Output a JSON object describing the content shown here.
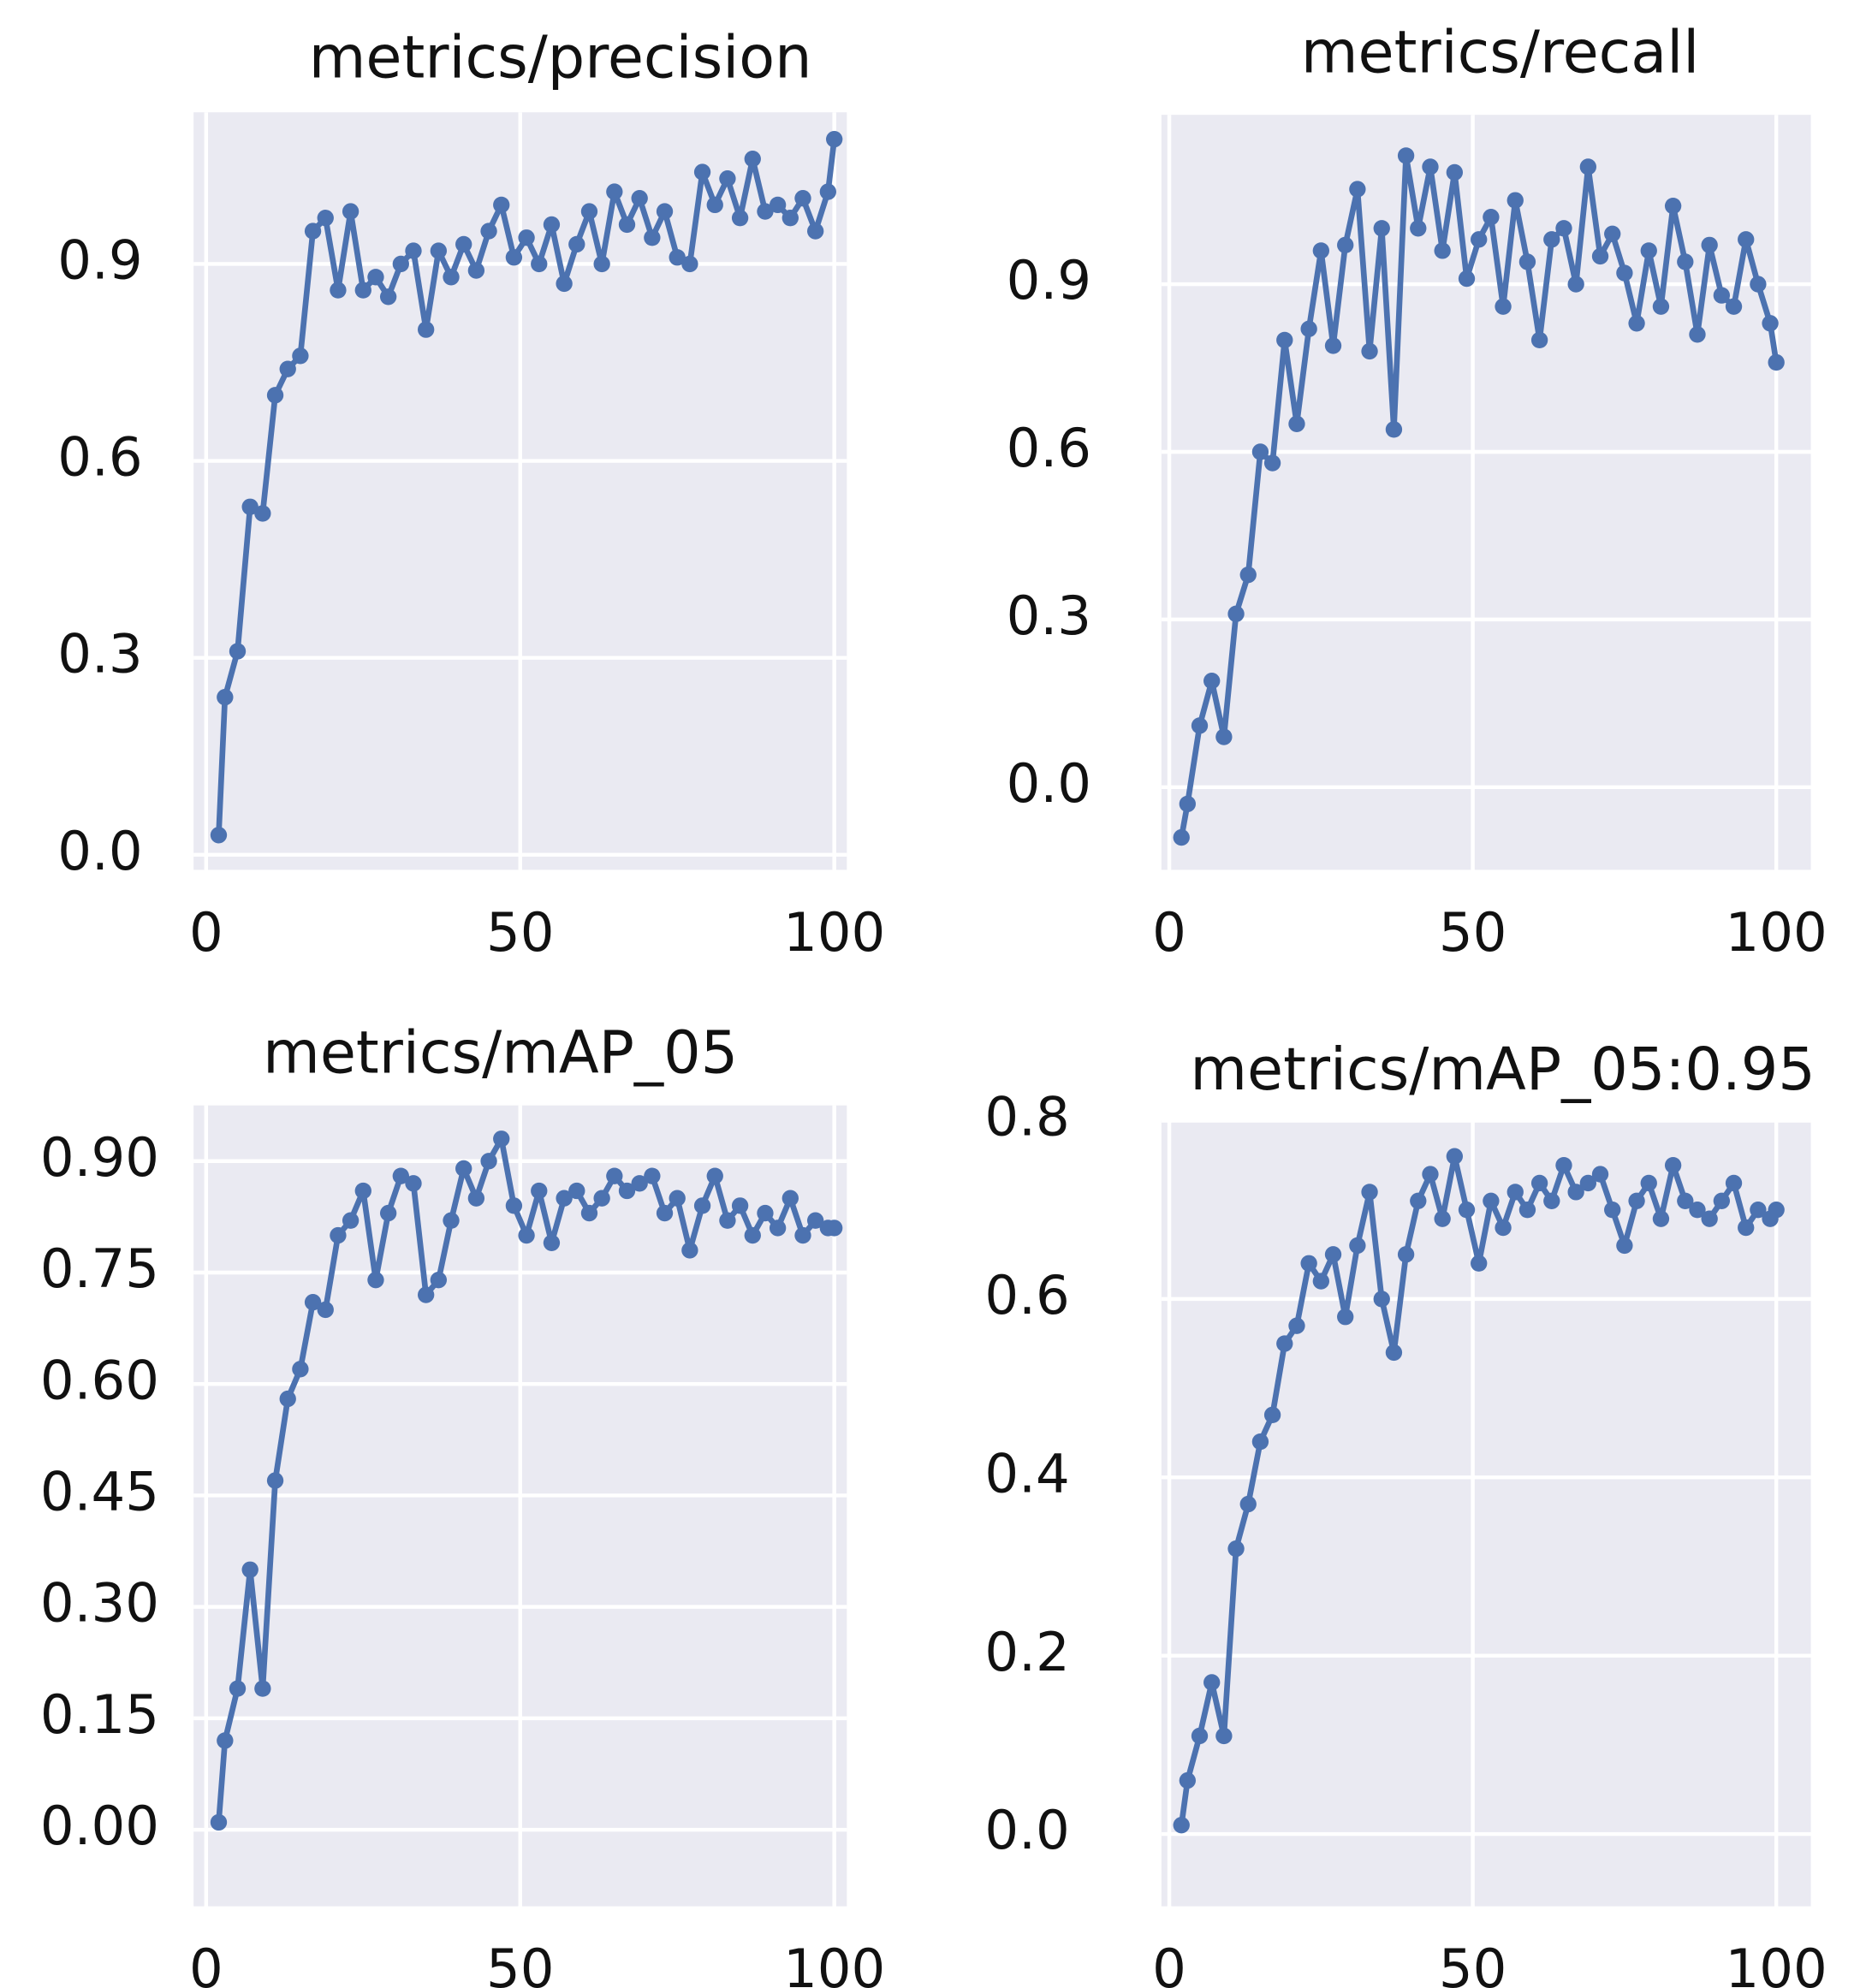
{
  "chart_data": [
    {
      "type": "line",
      "title": "metrics/precision",
      "color": "#4c72b0",
      "grid": true,
      "xlim": [
        -2,
        102
      ],
      "xticks": [
        0,
        50,
        100
      ],
      "ylim": [
        -0.023,
        1.131
      ],
      "yticks": [
        {
          "value": 0,
          "label": "0.0"
        },
        {
          "value": 0.3,
          "label": "0.3"
        },
        {
          "value": 0.6,
          "label": "0.6"
        },
        {
          "value": 0.9,
          "label": "0.9"
        }
      ],
      "x": [
        2,
        3,
        5,
        7,
        9,
        11,
        13,
        15,
        17,
        19,
        21,
        23,
        25,
        27,
        29,
        31,
        33,
        35,
        37,
        39,
        41,
        43,
        45,
        47,
        49,
        51,
        53,
        55,
        57,
        59,
        61,
        63,
        65,
        67,
        69,
        71,
        73,
        75,
        77,
        79,
        81,
        83,
        85,
        87,
        89,
        91,
        93,
        95,
        97,
        99,
        100
      ],
      "values": [
        0.03,
        0.24,
        0.31,
        0.53,
        0.52,
        0.7,
        0.74,
        0.76,
        0.95,
        0.97,
        0.86,
        0.98,
        0.86,
        0.88,
        0.85,
        0.9,
        0.92,
        0.8,
        0.92,
        0.88,
        0.93,
        0.89,
        0.95,
        0.99,
        0.91,
        0.94,
        0.9,
        0.96,
        0.87,
        0.93,
        0.98,
        0.9,
        1.01,
        0.96,
        1.0,
        0.94,
        0.98,
        0.91,
        0.9,
        1.04,
        0.99,
        1.03,
        0.97,
        1.06,
        0.98,
        0.99,
        0.97,
        1.0,
        0.95,
        1.01,
        1.09
      ]
    },
    {
      "type": "line",
      "title": "metrics/recall",
      "color": "#4c72b0",
      "grid": true,
      "xlim": [
        -1.3,
        105.7
      ],
      "xticks": [
        0,
        50,
        100
      ],
      "ylim": [
        -0.148,
        1.203
      ],
      "yticks": [
        {
          "value": 0,
          "label": "0.0"
        },
        {
          "value": 0.3,
          "label": "0.3"
        },
        {
          "value": 0.6,
          "label": "0.6"
        },
        {
          "value": 0.9,
          "label": "0.9"
        }
      ],
      "x": [
        2,
        3,
        5,
        7,
        9,
        11,
        13,
        15,
        17,
        19,
        21,
        23,
        25,
        27,
        29,
        31,
        33,
        35,
        37,
        39,
        41,
        43,
        45,
        47,
        49,
        51,
        53,
        55,
        57,
        59,
        61,
        63,
        65,
        67,
        69,
        71,
        73,
        75,
        77,
        79,
        81,
        83,
        85,
        87,
        89,
        91,
        93,
        95,
        97,
        99,
        100
      ],
      "values": [
        -0.09,
        -0.03,
        0.11,
        0.19,
        0.09,
        0.31,
        0.38,
        0.6,
        0.58,
        0.8,
        0.65,
        0.82,
        0.96,
        0.79,
        0.97,
        1.07,
        0.78,
        1.0,
        0.64,
        1.13,
        1.0,
        1.11,
        0.96,
        1.1,
        0.91,
        0.98,
        1.02,
        0.86,
        1.05,
        0.94,
        0.8,
        0.98,
        1.0,
        0.9,
        1.11,
        0.95,
        0.99,
        0.92,
        0.83,
        0.96,
        0.86,
        1.04,
        0.94,
        0.81,
        0.97,
        0.88,
        0.86,
        0.98,
        0.9,
        0.83,
        0.76
      ]
    },
    {
      "type": "line",
      "title": "metrics/mAP_05",
      "color": "#4c72b0",
      "grid": true,
      "xlim": [
        -2,
        102
      ],
      "xticks": [
        0,
        50,
        100
      ],
      "ylim": [
        -0.103,
        0.975
      ],
      "yticks": [
        {
          "value": 0,
          "label": "0.00"
        },
        {
          "value": 0.15,
          "label": "0.15"
        },
        {
          "value": 0.3,
          "label": "0.30"
        },
        {
          "value": 0.45,
          "label": "0.45"
        },
        {
          "value": 0.6,
          "label": "0.60"
        },
        {
          "value": 0.75,
          "label": "0.75"
        },
        {
          "value": 0.9,
          "label": "0.90"
        }
      ],
      "x": [
        2,
        3,
        5,
        7,
        9,
        11,
        13,
        15,
        17,
        19,
        21,
        23,
        25,
        27,
        29,
        31,
        33,
        35,
        37,
        39,
        41,
        43,
        45,
        47,
        49,
        51,
        53,
        55,
        57,
        59,
        61,
        63,
        65,
        67,
        69,
        71,
        73,
        75,
        77,
        79,
        81,
        83,
        85,
        87,
        89,
        91,
        93,
        95,
        97,
        99,
        100
      ],
      "values": [
        0.01,
        0.12,
        0.19,
        0.35,
        0.19,
        0.47,
        0.58,
        0.62,
        0.71,
        0.7,
        0.8,
        0.82,
        0.86,
        0.74,
        0.83,
        0.88,
        0.87,
        0.72,
        0.74,
        0.82,
        0.89,
        0.85,
        0.9,
        0.93,
        0.84,
        0.8,
        0.86,
        0.79,
        0.85,
        0.86,
        0.83,
        0.85,
        0.88,
        0.86,
        0.87,
        0.88,
        0.83,
        0.85,
        0.78,
        0.84,
        0.88,
        0.82,
        0.84,
        0.8,
        0.83,
        0.81,
        0.85,
        0.8,
        0.82,
        0.81,
        0.81
      ]
    },
    {
      "type": "line",
      "title": "metrics/mAP_05:0.95",
      "color": "#4c72b0",
      "grid": true,
      "xlim": [
        -1.3,
        105.7
      ],
      "xticks": [
        0,
        50,
        100
      ],
      "ylim": [
        -0.081,
        0.8
      ],
      "yticks": [
        {
          "value": 0,
          "label": "0.0"
        },
        {
          "value": 0.2,
          "label": "0.2"
        },
        {
          "value": 0.4,
          "label": "0.4"
        },
        {
          "value": 0.6,
          "label": "0.6"
        },
        {
          "value": 0.8,
          "label": "0.8"
        }
      ],
      "x": [
        2,
        3,
        5,
        7,
        9,
        11,
        13,
        15,
        17,
        19,
        21,
        23,
        25,
        27,
        29,
        31,
        33,
        35,
        37,
        39,
        41,
        43,
        45,
        47,
        49,
        51,
        53,
        55,
        57,
        59,
        61,
        63,
        65,
        67,
        69,
        71,
        73,
        75,
        77,
        79,
        81,
        83,
        85,
        87,
        89,
        91,
        93,
        95,
        97,
        99,
        100
      ],
      "values": [
        0.01,
        0.06,
        0.11,
        0.17,
        0.11,
        0.32,
        0.37,
        0.44,
        0.47,
        0.55,
        0.57,
        0.64,
        0.62,
        0.65,
        0.58,
        0.66,
        0.72,
        0.6,
        0.54,
        0.65,
        0.71,
        0.74,
        0.69,
        0.76,
        0.7,
        0.64,
        0.71,
        0.68,
        0.72,
        0.7,
        0.73,
        0.71,
        0.75,
        0.72,
        0.73,
        0.74,
        0.7,
        0.66,
        0.71,
        0.73,
        0.69,
        0.75,
        0.71,
        0.7,
        0.69,
        0.71,
        0.73,
        0.68,
        0.7,
        0.69,
        0.7
      ]
    }
  ]
}
